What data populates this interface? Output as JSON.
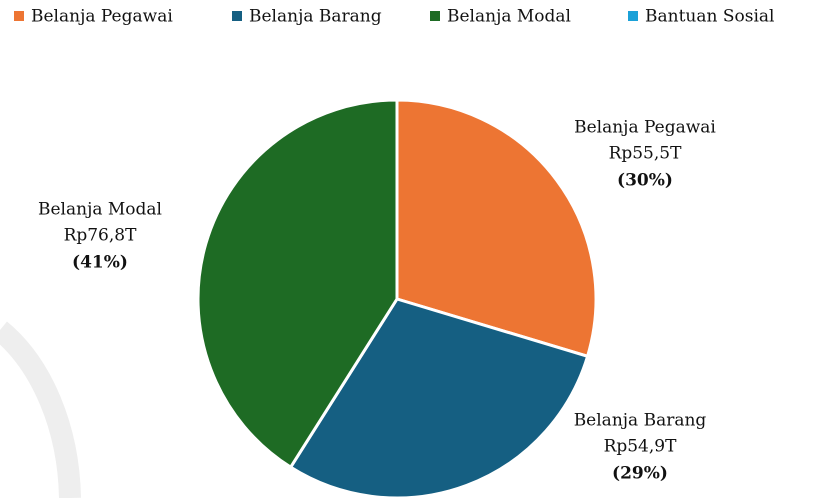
{
  "chart_data": {
    "type": "pie",
    "categories": [
      "Belanja Pegawai",
      "Belanja Barang",
      "Belanja Modal",
      "Bantuan Sosial"
    ],
    "values": [
      55.5,
      54.9,
      76.8,
      0
    ],
    "value_labels": [
      "Rp55,5T",
      "Rp54,9T",
      "Rp76,8T",
      null
    ],
    "percent_labels": [
      "(30%)",
      "(29%)",
      "(41%)",
      null
    ],
    "colors": [
      "#ED7533",
      "#155F82",
      "#1E6B24",
      "#1BA1D8"
    ],
    "legend": "top"
  }
}
